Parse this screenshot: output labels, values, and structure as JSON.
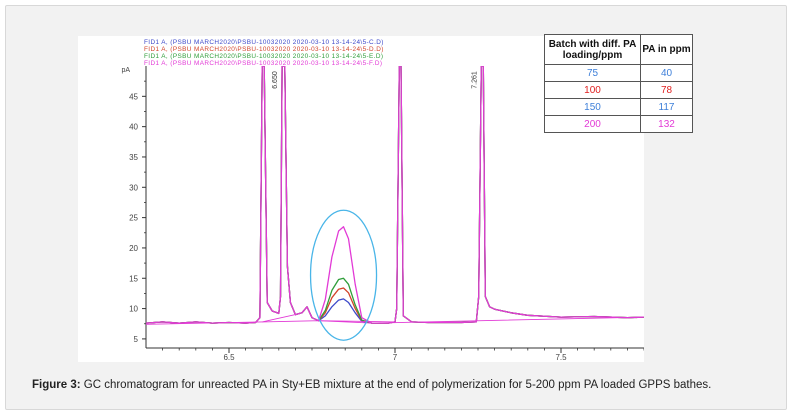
{
  "caption": {
    "label": "Figure 3:",
    "text": " GC chromatogram for unreacted PA in Sty+EB mixture at the end of polymerization for 5-200 ppm PA loaded GPPS bathes."
  },
  "colors": {
    "s75": "#3d49c9",
    "s100": "#d2442b",
    "s150": "#2f9e3a",
    "s200": "#e23ad6",
    "ellipse": "#49b5e8",
    "axis": "#333333"
  },
  "table": {
    "header": [
      "Batch with diff. PA loading/ppm",
      "PA in ppm"
    ],
    "rows": [
      {
        "batch": "75",
        "pa": "40",
        "color": "#3d7fd9"
      },
      {
        "batch": "100",
        "pa": "78",
        "color": "#e02020"
      },
      {
        "batch": "150",
        "pa": "117",
        "color": "#3d7fd9"
      },
      {
        "batch": "200",
        "pa": "132",
        "color": "#e23ad6"
      }
    ]
  },
  "chart_data": {
    "type": "line",
    "title": "",
    "xlabel": "",
    "ylabel": "pA",
    "xlim": [
      6.25,
      7.75
    ],
    "ylim": [
      3.5,
      50
    ],
    "xticks": [
      6.5,
      7,
      7.5
    ],
    "xtick_labels": [
      "6.5",
      "7",
      "7.5"
    ],
    "yticks": [
      5,
      10,
      15,
      20,
      25,
      30,
      35,
      40,
      45
    ],
    "ytick_labels": [
      "5",
      "10",
      "15",
      "20",
      "25",
      "30",
      "35",
      "40",
      "45"
    ],
    "legend_lines": [
      {
        "text": "FID1 A, (PSBU MARCH2020\\PSBU-10032020 2020-03-10 13-14-24\\5-C.D)",
        "color": "#3d49c9"
      },
      {
        "text": "FID1 A, (PSBU MARCH2020\\PSBU-10032020 2020-03-10 13-14-24\\5-D.D)",
        "color": "#d2442b"
      },
      {
        "text": "FID1 A, (PSBU MARCH2020\\PSBU-10032020 2020-03-10 13-14-24\\5-E.D)",
        "color": "#2f9e3a"
      },
      {
        "text": "FID1 A, (PSBU MARCH2020\\PSBU-10032020 2020-03-10 13-14-24\\5-F.D)",
        "color": "#e23ad6"
      }
    ],
    "peak_labels": [
      {
        "text": "6.650",
        "x": 6.66
      },
      {
        "text": "7.261",
        "x": 7.26
      }
    ],
    "series": [
      {
        "color": "#3d49c9",
        "points": [
          [
            6.25,
            7.6
          ],
          [
            6.3,
            7.8
          ],
          [
            6.35,
            7.6
          ],
          [
            6.4,
            7.8
          ],
          [
            6.45,
            7.6
          ],
          [
            6.5,
            7.7
          ],
          [
            6.55,
            7.6
          ],
          [
            6.58,
            7.7
          ],
          [
            6.593,
            8.5
          ],
          [
            6.6,
            50
          ],
          [
            6.606,
            50
          ],
          [
            6.615,
            11
          ],
          [
            6.63,
            9.6
          ],
          [
            6.65,
            9.2
          ],
          [
            6.655,
            12
          ],
          [
            6.66,
            50
          ],
          [
            6.668,
            50
          ],
          [
            6.676,
            17
          ],
          [
            6.685,
            11
          ],
          [
            6.7,
            9.0
          ],
          [
            6.72,
            9.3
          ],
          [
            6.735,
            10.3
          ],
          [
            6.75,
            8.5
          ],
          [
            6.77,
            8.0
          ],
          [
            6.79,
            8.8
          ],
          [
            6.81,
            10.3
          ],
          [
            6.83,
            11.4
          ],
          [
            6.845,
            11.6
          ],
          [
            6.86,
            11.0
          ],
          [
            6.88,
            9.3
          ],
          [
            6.9,
            7.9
          ],
          [
            6.93,
            7.6
          ],
          [
            6.98,
            7.6
          ],
          [
            7.0,
            7.8
          ],
          [
            7.005,
            10
          ],
          [
            7.013,
            50
          ],
          [
            7.018,
            50
          ],
          [
            7.025,
            8.8
          ],
          [
            7.05,
            7.8
          ],
          [
            7.1,
            7.7
          ],
          [
            7.2,
            7.7
          ],
          [
            7.245,
            7.8
          ],
          [
            7.252,
            12
          ],
          [
            7.26,
            50
          ],
          [
            7.266,
            50
          ],
          [
            7.272,
            12
          ],
          [
            7.285,
            10.3
          ],
          [
            7.3,
            9.9
          ],
          [
            7.35,
            9.3
          ],
          [
            7.4,
            8.9
          ],
          [
            7.5,
            8.6
          ],
          [
            7.6,
            8.7
          ],
          [
            7.7,
            8.5
          ],
          [
            7.75,
            8.6
          ]
        ]
      },
      {
        "color": "#d2442b",
        "points": [
          [
            6.25,
            7.6
          ],
          [
            6.3,
            7.8
          ],
          [
            6.35,
            7.6
          ],
          [
            6.4,
            7.8
          ],
          [
            6.45,
            7.6
          ],
          [
            6.5,
            7.7
          ],
          [
            6.55,
            7.6
          ],
          [
            6.58,
            7.7
          ],
          [
            6.593,
            8.5
          ],
          [
            6.6,
            50
          ],
          [
            6.606,
            50
          ],
          [
            6.615,
            11
          ],
          [
            6.63,
            9.6
          ],
          [
            6.65,
            9.2
          ],
          [
            6.655,
            12
          ],
          [
            6.66,
            50
          ],
          [
            6.668,
            50
          ],
          [
            6.676,
            17
          ],
          [
            6.685,
            11
          ],
          [
            6.7,
            9.0
          ],
          [
            6.72,
            9.3
          ],
          [
            6.735,
            10.3
          ],
          [
            6.75,
            8.5
          ],
          [
            6.77,
            8.0
          ],
          [
            6.79,
            9.3
          ],
          [
            6.81,
            11.8
          ],
          [
            6.83,
            13.2
          ],
          [
            6.845,
            13.4
          ],
          [
            6.86,
            12.6
          ],
          [
            6.88,
            10.0
          ],
          [
            6.9,
            8.0
          ],
          [
            6.93,
            7.6
          ],
          [
            6.98,
            7.6
          ],
          [
            7.0,
            7.8
          ],
          [
            7.005,
            10
          ],
          [
            7.013,
            50
          ],
          [
            7.018,
            50
          ],
          [
            7.025,
            8.8
          ],
          [
            7.05,
            7.8
          ],
          [
            7.1,
            7.7
          ],
          [
            7.2,
            7.7
          ],
          [
            7.245,
            7.8
          ],
          [
            7.252,
            12
          ],
          [
            7.26,
            50
          ],
          [
            7.266,
            50
          ],
          [
            7.272,
            12
          ],
          [
            7.285,
            10.3
          ],
          [
            7.3,
            9.9
          ],
          [
            7.35,
            9.3
          ],
          [
            7.4,
            8.9
          ],
          [
            7.5,
            8.6
          ],
          [
            7.6,
            8.7
          ],
          [
            7.7,
            8.5
          ],
          [
            7.75,
            8.6
          ]
        ]
      },
      {
        "color": "#2f9e3a",
        "points": [
          [
            6.25,
            7.6
          ],
          [
            6.3,
            7.8
          ],
          [
            6.35,
            7.6
          ],
          [
            6.4,
            7.8
          ],
          [
            6.45,
            7.6
          ],
          [
            6.5,
            7.7
          ],
          [
            6.55,
            7.6
          ],
          [
            6.58,
            7.7
          ],
          [
            6.593,
            8.5
          ],
          [
            6.6,
            50
          ],
          [
            6.606,
            50
          ],
          [
            6.615,
            11
          ],
          [
            6.63,
            9.6
          ],
          [
            6.65,
            9.2
          ],
          [
            6.655,
            12
          ],
          [
            6.66,
            50
          ],
          [
            6.668,
            50
          ],
          [
            6.676,
            17
          ],
          [
            6.685,
            11
          ],
          [
            6.7,
            9.0
          ],
          [
            6.72,
            9.3
          ],
          [
            6.735,
            10.3
          ],
          [
            6.75,
            8.5
          ],
          [
            6.77,
            8.0
          ],
          [
            6.79,
            9.7
          ],
          [
            6.81,
            13.0
          ],
          [
            6.83,
            14.8
          ],
          [
            6.845,
            15.0
          ],
          [
            6.86,
            14.0
          ],
          [
            6.88,
            10.6
          ],
          [
            6.9,
            8.1
          ],
          [
            6.93,
            7.6
          ],
          [
            6.98,
            7.6
          ],
          [
            7.0,
            7.8
          ],
          [
            7.005,
            10
          ],
          [
            7.013,
            50
          ],
          [
            7.018,
            50
          ],
          [
            7.025,
            8.8
          ],
          [
            7.05,
            7.8
          ],
          [
            7.1,
            7.7
          ],
          [
            7.2,
            7.7
          ],
          [
            7.245,
            7.8
          ],
          [
            7.252,
            12
          ],
          [
            7.26,
            50
          ],
          [
            7.266,
            50
          ],
          [
            7.272,
            12
          ],
          [
            7.285,
            10.3
          ],
          [
            7.3,
            9.9
          ],
          [
            7.35,
            9.3
          ],
          [
            7.4,
            8.9
          ],
          [
            7.5,
            8.6
          ],
          [
            7.6,
            8.7
          ],
          [
            7.7,
            8.5
          ],
          [
            7.75,
            8.6
          ]
        ]
      },
      {
        "color": "#e23ad6",
        "points": [
          [
            6.25,
            7.6
          ],
          [
            6.3,
            7.8
          ],
          [
            6.35,
            7.6
          ],
          [
            6.4,
            7.8
          ],
          [
            6.45,
            7.6
          ],
          [
            6.5,
            7.7
          ],
          [
            6.55,
            7.6
          ],
          [
            6.58,
            7.7
          ],
          [
            6.593,
            8.5
          ],
          [
            6.6,
            50
          ],
          [
            6.606,
            50
          ],
          [
            6.615,
            11
          ],
          [
            6.63,
            9.6
          ],
          [
            6.65,
            9.2
          ],
          [
            6.655,
            12
          ],
          [
            6.66,
            50
          ],
          [
            6.668,
            50
          ],
          [
            6.676,
            17
          ],
          [
            6.685,
            11
          ],
          [
            6.7,
            9.0
          ],
          [
            6.72,
            9.3
          ],
          [
            6.735,
            10.3
          ],
          [
            6.75,
            8.5
          ],
          [
            6.77,
            8.0
          ],
          [
            6.79,
            11.5
          ],
          [
            6.81,
            18.5
          ],
          [
            6.83,
            22.8
          ],
          [
            6.845,
            23.5
          ],
          [
            6.86,
            21.5
          ],
          [
            6.88,
            14.0
          ],
          [
            6.9,
            8.5
          ],
          [
            6.93,
            7.6
          ],
          [
            6.98,
            7.6
          ],
          [
            7.0,
            7.8
          ],
          [
            7.005,
            10
          ],
          [
            7.013,
            50
          ],
          [
            7.018,
            50
          ],
          [
            7.025,
            8.8
          ],
          [
            7.05,
            7.8
          ],
          [
            7.1,
            7.7
          ],
          [
            7.2,
            7.7
          ],
          [
            7.245,
            7.8
          ],
          [
            7.252,
            12
          ],
          [
            7.26,
            50
          ],
          [
            7.266,
            50
          ],
          [
            7.272,
            12
          ],
          [
            7.285,
            10.3
          ],
          [
            7.3,
            9.9
          ],
          [
            7.35,
            9.3
          ],
          [
            7.4,
            8.9
          ],
          [
            7.5,
            8.6
          ],
          [
            7.6,
            8.7
          ],
          [
            7.7,
            8.5
          ],
          [
            7.75,
            8.6
          ]
        ]
      }
    ],
    "baselines": {
      "color": "#e23ad6",
      "lines": [
        [
          [
            6.25,
            7.4
          ],
          [
            6.6,
            7.8
          ],
          [
            6.77,
            8.0
          ],
          [
            6.93,
            7.6
          ],
          [
            7.75,
            8.6
          ]
        ],
        [
          [
            6.6,
            7.8
          ],
          [
            6.7,
            9.0
          ]
        ],
        [
          [
            6.77,
            8.0
          ],
          [
            7.0,
            7.8
          ]
        ]
      ]
    }
  }
}
